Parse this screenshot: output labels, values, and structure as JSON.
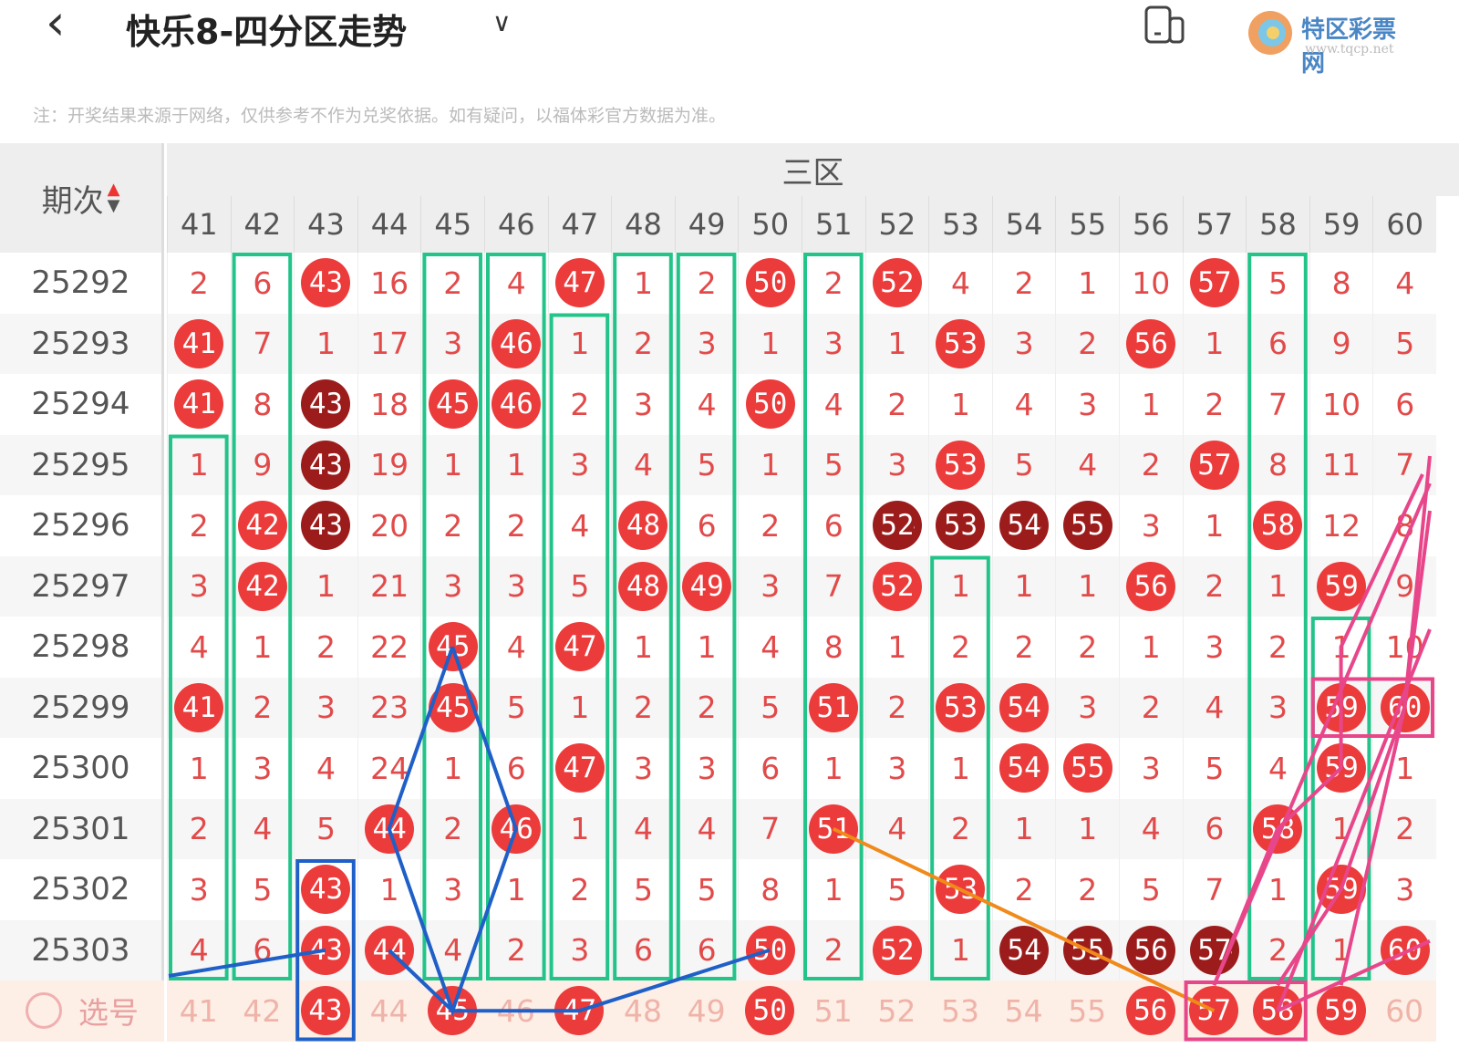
{
  "header": {
    "title": "快乐8-四分区走势",
    "back_icon": "chevron-left-icon",
    "dropdown_icon": "chevron-down-icon",
    "device_icon": "device-switch-icon",
    "watermark": "特区彩票网 www.tqcp.net"
  },
  "note": "注：开奖结果来源于网络，仅供参考不作为兑奖依据。如有疑问，以福体彩官方数据为准。",
  "table": {
    "period_header": "期次",
    "zone_header": "三区",
    "columns": [
      "41",
      "42",
      "43",
      "44",
      "45",
      "46",
      "47",
      "48",
      "49",
      "50",
      "51",
      "52",
      "53",
      "54",
      "55",
      "56",
      "57",
      "58",
      "59",
      "60"
    ],
    "rows": [
      {
        "period": "25292",
        "cells": [
          "2",
          "6",
          "43*",
          "16",
          "2",
          "4",
          "47*",
          "1",
          "2",
          "50*",
          "2",
          "52*",
          "4",
          "2",
          "1",
          "10",
          "57*",
          "5",
          "8",
          "4"
        ]
      },
      {
        "period": "25293",
        "cells": [
          "41*",
          "7",
          "1",
          "17",
          "3",
          "46*",
          "1",
          "2",
          "3",
          "1",
          "3",
          "1",
          "53*",
          "3",
          "2",
          "56*",
          "1",
          "6",
          "9",
          "5"
        ]
      },
      {
        "period": "25294",
        "cells": [
          "41*",
          "8",
          "43#",
          "18",
          "45*",
          "46*",
          "2",
          "3",
          "4",
          "50*",
          "4",
          "2",
          "1",
          "4",
          "3",
          "1",
          "2",
          "7",
          "10",
          "6"
        ]
      },
      {
        "period": "25295",
        "cells": [
          "1",
          "9",
          "43#",
          "19",
          "1",
          "1",
          "3",
          "4",
          "5",
          "1",
          "5",
          "3",
          "53*",
          "5",
          "4",
          "2",
          "57*",
          "8",
          "11",
          "7"
        ]
      },
      {
        "period": "25296",
        "cells": [
          "2",
          "42*",
          "43#",
          "20",
          "2",
          "2",
          "4",
          "48*",
          "6",
          "2",
          "6",
          "52#",
          "53#",
          "54#",
          "55#",
          "3",
          "1",
          "58*",
          "12",
          "8"
        ]
      },
      {
        "period": "25297",
        "cells": [
          "3",
          "42*",
          "1",
          "21",
          "3",
          "3",
          "5",
          "48*",
          "49*",
          "3",
          "7",
          "52*",
          "1",
          "1",
          "1",
          "56*",
          "2",
          "1",
          "59*",
          "9"
        ]
      },
      {
        "period": "25298",
        "cells": [
          "4",
          "1",
          "2",
          "22",
          "45*",
          "4",
          "47*",
          "1",
          "1",
          "4",
          "8",
          "1",
          "2",
          "2",
          "2",
          "1",
          "3",
          "2",
          "1",
          "10"
        ]
      },
      {
        "period": "25299",
        "cells": [
          "41*",
          "2",
          "3",
          "23",
          "45*",
          "5",
          "1",
          "2",
          "2",
          "5",
          "51*",
          "2",
          "53*",
          "54*",
          "3",
          "2",
          "4",
          "3",
          "59*",
          "60*"
        ]
      },
      {
        "period": "25300",
        "cells": [
          "1",
          "3",
          "4",
          "24",
          "1",
          "6",
          "47*",
          "3",
          "3",
          "6",
          "1",
          "3",
          "1",
          "54*",
          "55*",
          "3",
          "5",
          "4",
          "59*",
          "1"
        ]
      },
      {
        "period": "25301",
        "cells": [
          "2",
          "4",
          "5",
          "44*",
          "2",
          "46*",
          "1",
          "4",
          "4",
          "7",
          "51*",
          "4",
          "2",
          "1",
          "1",
          "4",
          "6",
          "58*",
          "1",
          "2"
        ]
      },
      {
        "period": "25302",
        "cells": [
          "3",
          "5",
          "43*",
          "1",
          "3",
          "1",
          "2",
          "5",
          "5",
          "8",
          "1",
          "5",
          "53*",
          "2",
          "2",
          "5",
          "7",
          "1",
          "59*",
          "3"
        ]
      },
      {
        "period": "25303",
        "cells": [
          "4",
          "6",
          "43*",
          "44*",
          "4",
          "2",
          "3",
          "6",
          "6",
          "50*",
          "2",
          "52*",
          "1",
          "54#",
          "55#",
          "56#",
          "57#",
          "2",
          "1",
          "60*"
        ]
      }
    ],
    "select_row": {
      "label": "选号",
      "cells": [
        "41",
        "42",
        "43*",
        "44",
        "45*",
        "46",
        "47*",
        "48",
        "49",
        "50*",
        "51",
        "52",
        "53",
        "54",
        "55",
        "56*",
        "57*",
        "58*",
        "59*",
        "60"
      ]
    }
  },
  "colors": {
    "ball": "#ec3b3b",
    "ball_repeat": "#9c1c1c",
    "text": "#e24a4a",
    "green": "#22c48a",
    "blue": "#1f5fc8",
    "orange": "#f08a1a",
    "pink": "#e8468a"
  }
}
